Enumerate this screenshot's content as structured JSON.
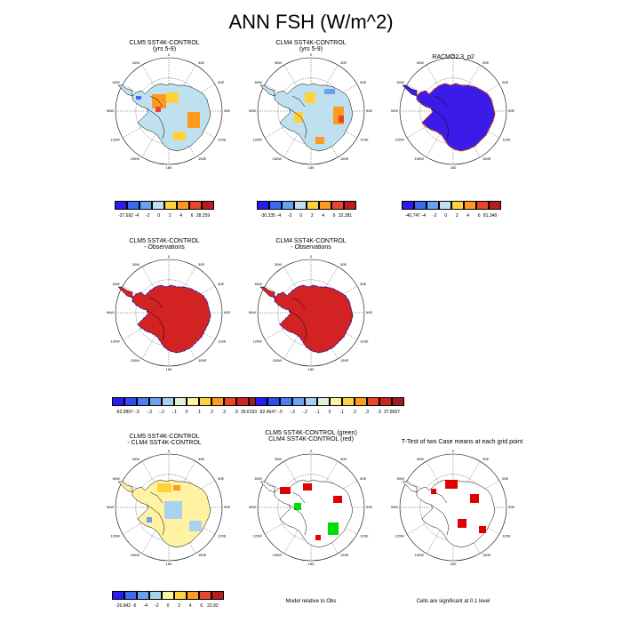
{
  "title": "ANN FSH (W/m^2)",
  "chart_data": [
    {
      "type": "heatmap",
      "panel": "p1",
      "title_lines": [
        "CLM5 SST4K-CONTROL",
        "(yrs 5-9)"
      ],
      "colorbar": {
        "labels": [
          "-27.692",
          "-4",
          "-2",
          "0",
          "2",
          "4",
          "6",
          "28.259"
        ],
        "colors": [
          "#2b1bf0",
          "#3d6af5",
          "#6aa0f0",
          "#bfe0ef",
          "#ffd23c",
          "#ff9a1e",
          "#e84628",
          "#b71c22"
        ]
      }
    },
    {
      "type": "heatmap",
      "panel": "p2",
      "title_lines": [
        "CLM4 SST4K-CONTROL",
        "(yrs 5-9)"
      ],
      "colorbar": {
        "labels": [
          "-30.335",
          "-4",
          "-2",
          "0",
          "2",
          "4",
          "6",
          "32.381"
        ],
        "colors": [
          "#2b1bf0",
          "#3d6af5",
          "#6aa0f0",
          "#bfe0ef",
          "#ffd23c",
          "#ff9a1e",
          "#e84628",
          "#b71c22"
        ]
      }
    },
    {
      "type": "heatmap",
      "panel": "p3",
      "title_lines": [
        "RACMO2.3_p2"
      ],
      "colorbar": {
        "labels": [
          "-40.747",
          "-4",
          "-2",
          "0",
          "2",
          "4",
          "6",
          "81.348"
        ],
        "colors": [
          "#2b1bf0",
          "#3d6af5",
          "#6aa0f0",
          "#bfe0ef",
          "#ffd23c",
          "#ff9a1e",
          "#e84628",
          "#b71c22"
        ]
      }
    },
    {
      "type": "heatmap",
      "panel": "p4",
      "title_lines": [
        "CLM5 SST4K-CONTROL",
        "- Observations"
      ],
      "colorbar": {
        "labels": [
          "-82.9897",
          "-.5",
          "-.3",
          "-.2",
          "-.1",
          "0",
          ".1",
          ".2",
          ".3",
          ".5",
          "39.6193"
        ],
        "colors": [
          "#2b1bf0",
          "#2f4cf2",
          "#4a7cf2",
          "#6aa6f0",
          "#a6d0ee",
          "#e6f0d8",
          "#fff2a0",
          "#ffd23c",
          "#ff9a1e",
          "#e84628",
          "#d22222",
          "#a01c20"
        ]
      }
    },
    {
      "type": "heatmap",
      "panel": "p5",
      "title_lines": [
        "CLM4 SST4K-CONTROL",
        "- Observations"
      ],
      "colorbar": {
        "labels": [
          "-82.4647",
          "-.5",
          "-.3",
          "-.2",
          "-.1",
          "0",
          ".1",
          ".2",
          ".3",
          ".5",
          "37.8607"
        ],
        "colors": [
          "#2b1bf0",
          "#2f4cf2",
          "#4a7cf2",
          "#6aa6f0",
          "#a6d0ee",
          "#e6f0d8",
          "#fff2a0",
          "#ffd23c",
          "#ff9a1e",
          "#e84628",
          "#d22222",
          "#a01c20"
        ]
      }
    },
    {
      "type": "heatmap",
      "panel": "p7",
      "title_lines": [
        "CLM5 SST4K-CONTROL",
        "- CLM4 SST4K-CONTROL"
      ],
      "colorbar": {
        "labels": [
          "-26.842",
          "-6",
          "-4",
          "-2",
          "0",
          "2",
          "4",
          "6",
          "22.82"
        ],
        "colors": [
          "#2b1bf0",
          "#3d6af5",
          "#6aa0f0",
          "#a9d2ee",
          "#fff5a0",
          "#ffd23c",
          "#ff9a1e",
          "#e84628",
          "#b71c22"
        ]
      }
    },
    {
      "type": "heatmap",
      "panel": "p8",
      "title_lines": [
        "CLM5 SST4K-CONTROL (green)",
        "CLM4 SST4K-CONTROL (red)"
      ],
      "caption": "Model relative to Obs"
    },
    {
      "type": "heatmap",
      "panel": "p9",
      "title_lines": [
        "T-Test of two Case means at each grid point"
      ],
      "caption": "Cells are significant at 0.1 level"
    }
  ],
  "lon_labels": {
    "top": "0",
    "bottom": "180",
    "l1": "30W",
    "l2": "60W",
    "l3": "90W",
    "l4": "120W",
    "l5": "150W",
    "r1": "30E",
    "r2": "60E",
    "r3": "90E",
    "r4": "120E",
    "r5": "150E"
  }
}
